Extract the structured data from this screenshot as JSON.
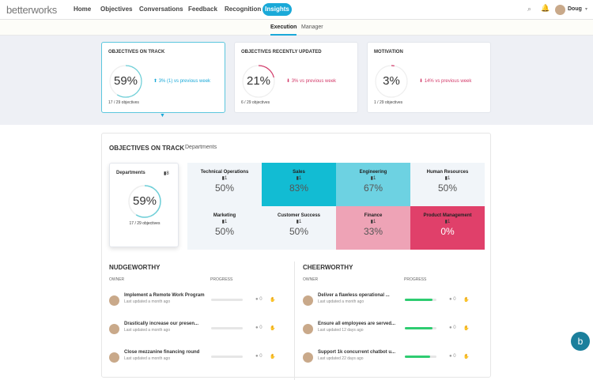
{
  "nav": {
    "logo": "betterworks",
    "items": [
      "Home",
      "Objectives",
      "Conversations",
      "Feedback",
      "Recognition"
    ],
    "active": "Insights",
    "user": "Doug"
  },
  "subtabs": {
    "active": "Execution",
    "other": "Manager"
  },
  "summary": [
    {
      "title": "OBJECTIVES ON TRACK",
      "value": "59%",
      "pct": 59,
      "delta": "⬆ 3% (1) vs previous week",
      "count": "17 / 29 objectives",
      "color": "#1aa9d8"
    },
    {
      "title": "OBJECTIVES RECENTLY UPDATED",
      "value": "21%",
      "pct": 21,
      "delta": "⬇ 3% vs previous week",
      "count": "6 / 29 objectives",
      "color": "#d33b6a"
    },
    {
      "title": "MOTIVATION",
      "value": "3%",
      "pct": 3,
      "delta": "⬇ 14% vs previous week",
      "count": "1 / 29 objectives",
      "color": "#d33b6a"
    }
  ],
  "detail": {
    "title": "OBJECTIVES ON TRACK",
    "filter": "Departments",
    "dept_card": {
      "label": "Departments",
      "count": "8",
      "value": "59%",
      "objectives": "17 / 29 objectives"
    },
    "cells": [
      {
        "name": "Technical Operations",
        "count": "1",
        "value": "50%",
        "bg": "#f1f5f9"
      },
      {
        "name": "Sales",
        "count": "1",
        "value": "83%",
        "bg": "#12bcd3"
      },
      {
        "name": "Engineering",
        "count": "1",
        "value": "67%",
        "bg": "#6dd2e2"
      },
      {
        "name": "Human Resources",
        "count": "1",
        "value": "50%",
        "bg": "#f1f5f9"
      },
      {
        "name": "Marketing",
        "count": "1",
        "value": "50%",
        "bg": "#f1f5f9"
      },
      {
        "name": "Customer Success",
        "count": "1",
        "value": "50%",
        "bg": "#f1f5f9"
      },
      {
        "name": "Finance",
        "count": "1",
        "value": "33%",
        "bg": "#eea3b6"
      },
      {
        "name": "Product Management",
        "count": "1",
        "value": "0%",
        "bg": "#e0406a"
      }
    ]
  },
  "nudge": {
    "title": "NUDGEWORTHY",
    "owner": "OWNER",
    "progress": "PROGRESS",
    "rows": [
      {
        "title": "Implement a Remote Work Program",
        "sub": "Last updated a month ago",
        "comments": "0",
        "progress": 0
      },
      {
        "title": "Drastically increase our presen...",
        "sub": "Last updated a month ago",
        "comments": "0",
        "progress": 0
      },
      {
        "title": "Close mezzanine financing round",
        "sub": "Last updated a month ago",
        "comments": "0",
        "progress": 0
      }
    ]
  },
  "cheer": {
    "title": "CHEERWORTHY",
    "owner": "OWNER",
    "progress": "PROGRESS",
    "rows": [
      {
        "title": "Deliver a flawless operational ...",
        "sub": "Last updated a month ago",
        "comments": "0",
        "progress": 88
      },
      {
        "title": "Ensure all employees are served...",
        "sub": "Last updated 12 days ago",
        "comments": "0",
        "progress": 88
      },
      {
        "title": "Support 1k concurrent chatbot u...",
        "sub": "Last updated 22 days ago",
        "comments": "0",
        "progress": 80
      }
    ]
  }
}
